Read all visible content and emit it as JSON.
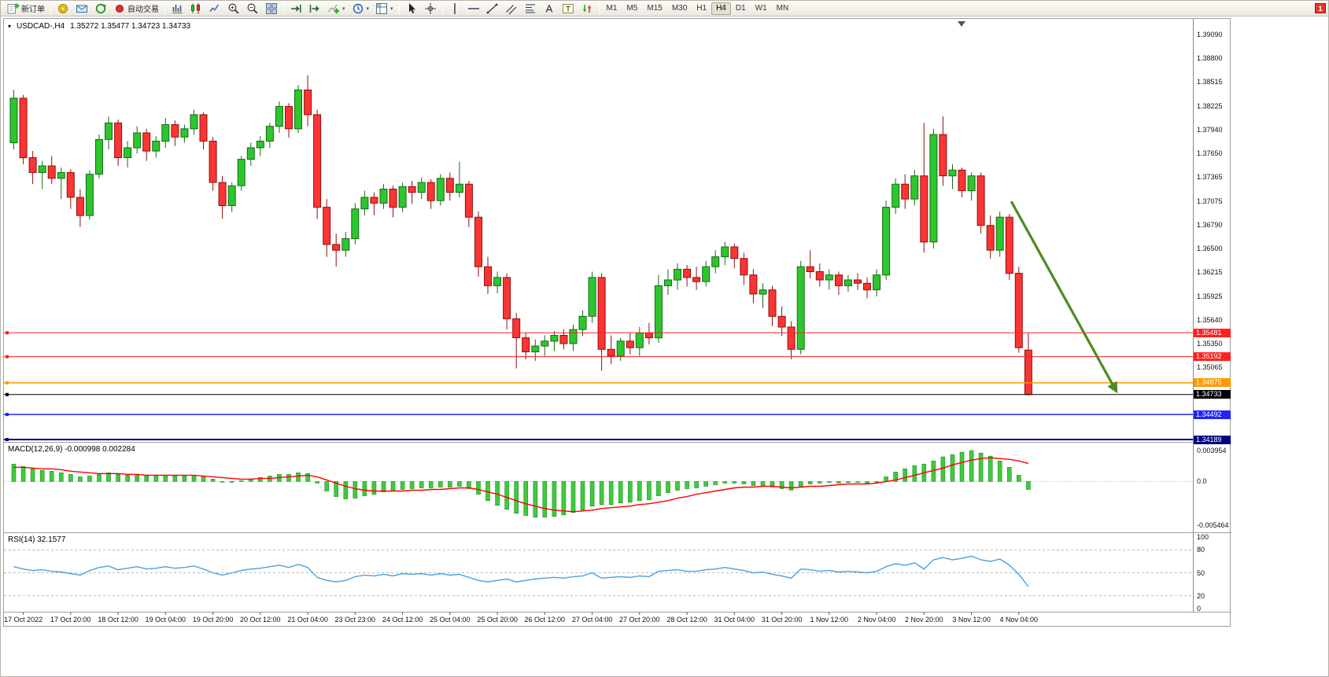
{
  "app": {
    "badge": "1"
  },
  "toolbar": {
    "items": [
      {
        "type": "button",
        "name": "new-order-button",
        "icon": "new-order",
        "label": "新订单"
      },
      {
        "type": "sep"
      },
      {
        "type": "icon",
        "name": "alerts-button",
        "icon": "alerts"
      },
      {
        "type": "icon",
        "name": "mailbox-button",
        "icon": "mailbox"
      },
      {
        "type": "icon",
        "name": "refresh-button",
        "icon": "history"
      },
      {
        "type": "button",
        "name": "autotrade-button",
        "icon": "autotrade",
        "label": "自动交易"
      },
      {
        "type": "sep"
      },
      {
        "type": "icon",
        "name": "bar-chart-mode-button",
        "icon": "bars"
      },
      {
        "type": "icon",
        "name": "candle-mode-button",
        "icon": "candles"
      },
      {
        "type": "icon",
        "name": "line-mode-button",
        "icon": "linechart"
      },
      {
        "type": "icon",
        "name": "zoom-in-button",
        "icon": "zoom-in"
      },
      {
        "type": "icon",
        "name": "zoom-out-button",
        "icon": "zoom-out"
      },
      {
        "type": "icon",
        "name": "tile-windows-button",
        "icon": "tile"
      },
      {
        "type": "sep"
      },
      {
        "type": "icon",
        "name": "auto-scroll-button",
        "icon": "autoscroll"
      },
      {
        "type": "icon",
        "name": "chart-shift-button",
        "icon": "chartshift"
      },
      {
        "type": "icon",
        "name": "indicators-button",
        "icon": "indicators",
        "dropdown": true
      },
      {
        "type": "icon",
        "name": "periods-button",
        "icon": "periods",
        "dropdown": true
      },
      {
        "type": "icon",
        "name": "templates-button",
        "icon": "templates",
        "dropdown": true
      },
      {
        "type": "sep"
      },
      {
        "type": "icon",
        "name": "cursor-button",
        "icon": "cursor"
      },
      {
        "type": "icon",
        "name": "crosshair-button",
        "icon": "crosshair"
      },
      {
        "type": "sep"
      },
      {
        "type": "icon",
        "name": "vline-button",
        "icon": "vline"
      },
      {
        "type": "icon",
        "name": "hline-button",
        "icon": "hline"
      },
      {
        "type": "icon",
        "name": "trendline-button",
        "icon": "trendline"
      },
      {
        "type": "icon",
        "name": "channel-button",
        "icon": "channel"
      },
      {
        "type": "icon",
        "name": "fibo-button",
        "icon": "fibo"
      },
      {
        "type": "icon",
        "name": "text-button",
        "icon": "text-a"
      },
      {
        "type": "icon",
        "name": "label-button",
        "icon": "text-t"
      },
      {
        "type": "icon",
        "name": "arrows-button",
        "icon": "arrows"
      },
      {
        "type": "sep"
      }
    ],
    "timeframes": [
      "M1",
      "M5",
      "M15",
      "M30",
      "H1",
      "H4",
      "D1",
      "W1",
      "MN"
    ],
    "active_timeframe": "H4"
  },
  "chart": {
    "symbol_title": "USDCAD-,H4",
    "ohlc_title": "1.35272 1.35477 1.34723 1.34733",
    "macd_label": "MACD(12,26,9) -0.000998 0.002284",
    "rsi_label": "RSI(14) 32.1577"
  },
  "colors": {
    "bull": "#2ec62e",
    "bull_stroke": "#156a15",
    "bear": "#fb3434",
    "bear_stroke": "#8f0f0f",
    "macd_hist": "#3ecb3e",
    "macd_hist_stroke": "#1e8f1e",
    "macd_signal": "#ff0000",
    "rsi": "#4aa0e0",
    "arrow": "#4c8c1e"
  },
  "axes": {
    "price_top": 1.39242,
    "price_bottom": 1.3416,
    "macd_max": 0.0047,
    "macd_min": -0.0062,
    "price_ticks": [
      "1.39090",
      "1.38800",
      "1.38515",
      "1.38225",
      "1.37940",
      "1.37650",
      "1.37365",
      "1.37075",
      "1.36790",
      "1.36500",
      "1.36215",
      "1.35925",
      "1.35640",
      "1.35350",
      "1.35065"
    ],
    "macd_ticks": [
      {
        "v": 0.003954,
        "t": "0.003954"
      },
      {
        "v": 0.0,
        "t": "0.0"
      },
      {
        "v": -0.005464,
        "t": "-0.005464"
      }
    ],
    "rsi_ticks": [
      {
        "v": 100,
        "t": "100"
      },
      {
        "v": 80,
        "t": "80"
      },
      {
        "v": 50,
        "t": "50"
      },
      {
        "v": 20,
        "t": "20"
      },
      {
        "v": 0,
        "t": "0"
      }
    ],
    "rsi_levels": [
      80,
      50,
      20
    ]
  },
  "hlines": [
    {
      "price": 1.35481,
      "label": "1.35481",
      "color": "#ff2020",
      "w": 1
    },
    {
      "price": 1.35192,
      "label": "1.35192",
      "color": "#ff2020",
      "w": 1
    },
    {
      "price": 1.34875,
      "label": "1.34875",
      "color": "#ff9a00",
      "w": 1.5
    },
    {
      "price": 1.34733,
      "label": "1.34733",
      "color": "#000000",
      "w": 1
    },
    {
      "price": 1.34492,
      "label": "1.34492",
      "color": "#2222ff",
      "w": 1.5
    },
    {
      "price": 1.34189,
      "label": "1.34189",
      "color": "#000080",
      "w": 2
    }
  ],
  "arrow": {
    "from_bar": 105.2,
    "from_price": 1.3707,
    "to_bar": 116.3,
    "to_price": 1.3477
  },
  "chart_data": {
    "type": "candlestick",
    "symbol": "USDCAD-",
    "timeframe": "H4",
    "candles": [
      [
        1.3778,
        1.3842,
        1.377,
        1.3832
      ],
      [
        1.3832,
        1.3836,
        1.3752,
        1.376
      ],
      [
        1.376,
        1.3768,
        1.3728,
        1.3742
      ],
      [
        1.3742,
        1.3756,
        1.3722,
        1.375
      ],
      [
        1.375,
        1.3762,
        1.3728,
        1.3735
      ],
      [
        1.3735,
        1.3748,
        1.371,
        1.3742
      ],
      [
        1.3742,
        1.3746,
        1.3698,
        1.3712
      ],
      [
        1.3712,
        1.3722,
        1.3676,
        1.369
      ],
      [
        1.369,
        1.3745,
        1.3685,
        1.374
      ],
      [
        1.374,
        1.3788,
        1.3735,
        1.3782
      ],
      [
        1.3782,
        1.381,
        1.377,
        1.3802
      ],
      [
        1.3802,
        1.3806,
        1.375,
        1.376
      ],
      [
        1.376,
        1.378,
        1.3748,
        1.3772
      ],
      [
        1.3772,
        1.3798,
        1.3765,
        1.379
      ],
      [
        1.379,
        1.3795,
        1.3756,
        1.3768
      ],
      [
        1.3768,
        1.3786,
        1.376,
        1.378
      ],
      [
        1.378,
        1.3808,
        1.3772,
        1.38
      ],
      [
        1.38,
        1.3805,
        1.3774,
        1.3785
      ],
      [
        1.3785,
        1.38,
        1.3778,
        1.3795
      ],
      [
        1.3795,
        1.3818,
        1.3788,
        1.3812
      ],
      [
        1.3812,
        1.3815,
        1.377,
        1.378
      ],
      [
        1.378,
        1.3785,
        1.372,
        1.373
      ],
      [
        1.373,
        1.3738,
        1.3686,
        1.3702
      ],
      [
        1.3702,
        1.373,
        1.3694,
        1.3726
      ],
      [
        1.3726,
        1.3762,
        1.372,
        1.3758
      ],
      [
        1.3758,
        1.3778,
        1.375,
        1.3772
      ],
      [
        1.3772,
        1.3786,
        1.3762,
        1.378
      ],
      [
        1.378,
        1.3802,
        1.3772,
        1.3798
      ],
      [
        1.3798,
        1.3828,
        1.379,
        1.3822
      ],
      [
        1.3822,
        1.3826,
        1.3784,
        1.3795
      ],
      [
        1.3795,
        1.3848,
        1.379,
        1.3842
      ],
      [
        1.3842,
        1.386,
        1.3798,
        1.3812
      ],
      [
        1.3812,
        1.3818,
        1.3686,
        1.37
      ],
      [
        1.37,
        1.371,
        1.364,
        1.3655
      ],
      [
        1.3655,
        1.3668,
        1.3628,
        1.3648
      ],
      [
        1.3648,
        1.367,
        1.364,
        1.3662
      ],
      [
        1.3662,
        1.3705,
        1.3655,
        1.3698
      ],
      [
        1.3698,
        1.372,
        1.369,
        1.3712
      ],
      [
        1.3712,
        1.3718,
        1.369,
        1.3705
      ],
      [
        1.3705,
        1.3728,
        1.3698,
        1.3722
      ],
      [
        1.3722,
        1.3726,
        1.3688,
        1.37
      ],
      [
        1.37,
        1.373,
        1.3694,
        1.3725
      ],
      [
        1.3725,
        1.3732,
        1.3704,
        1.3718
      ],
      [
        1.3718,
        1.3736,
        1.371,
        1.373
      ],
      [
        1.373,
        1.3734,
        1.3698,
        1.3708
      ],
      [
        1.3708,
        1.374,
        1.3702,
        1.3735
      ],
      [
        1.3735,
        1.3742,
        1.3708,
        1.3718
      ],
      [
        1.3718,
        1.3755,
        1.3712,
        1.3728
      ],
      [
        1.3728,
        1.3732,
        1.3676,
        1.3688
      ],
      [
        1.3688,
        1.3695,
        1.3616,
        1.3628
      ],
      [
        1.3628,
        1.364,
        1.3595,
        1.3605
      ],
      [
        1.3605,
        1.3622,
        1.3596,
        1.3615
      ],
      [
        1.3615,
        1.362,
        1.3552,
        1.3565
      ],
      [
        1.3565,
        1.3572,
        1.3505,
        1.3542
      ],
      [
        1.3542,
        1.3548,
        1.3516,
        1.3525
      ],
      [
        1.3525,
        1.354,
        1.3514,
        1.3532
      ],
      [
        1.3532,
        1.3545,
        1.352,
        1.3538
      ],
      [
        1.3538,
        1.355,
        1.3526,
        1.3545
      ],
      [
        1.3545,
        1.3552,
        1.3528,
        1.3535
      ],
      [
        1.3535,
        1.3558,
        1.3526,
        1.3552
      ],
      [
        1.3552,
        1.3575,
        1.3544,
        1.3568
      ],
      [
        1.3568,
        1.3622,
        1.356,
        1.3615
      ],
      [
        1.3615,
        1.362,
        1.3502,
        1.3528
      ],
      [
        1.3528,
        1.3545,
        1.351,
        1.352
      ],
      [
        1.352,
        1.3542,
        1.3514,
        1.3538
      ],
      [
        1.3538,
        1.3548,
        1.3522,
        1.353
      ],
      [
        1.353,
        1.3555,
        1.352,
        1.3548
      ],
      [
        1.3548,
        1.356,
        1.3534,
        1.3542
      ],
      [
        1.3542,
        1.3618,
        1.3536,
        1.3605
      ],
      [
        1.3605,
        1.3625,
        1.3594,
        1.3612
      ],
      [
        1.3612,
        1.3632,
        1.36,
        1.3625
      ],
      [
        1.3625,
        1.363,
        1.3604,
        1.3615
      ],
      [
        1.3615,
        1.3628,
        1.36,
        1.361
      ],
      [
        1.361,
        1.3635,
        1.3604,
        1.3628
      ],
      [
        1.3628,
        1.3648,
        1.362,
        1.364
      ],
      [
        1.364,
        1.3658,
        1.363,
        1.3652
      ],
      [
        1.3652,
        1.3656,
        1.3626,
        1.3638
      ],
      [
        1.3638,
        1.3645,
        1.3606,
        1.3618
      ],
      [
        1.3618,
        1.3625,
        1.3584,
        1.3595
      ],
      [
        1.3595,
        1.3608,
        1.3578,
        1.36
      ],
      [
        1.36,
        1.3605,
        1.3556,
        1.3568
      ],
      [
        1.3568,
        1.358,
        1.3544,
        1.3555
      ],
      [
        1.3555,
        1.3562,
        1.3516,
        1.3528
      ],
      [
        1.3528,
        1.3635,
        1.3522,
        1.3628
      ],
      [
        1.3628,
        1.3648,
        1.3614,
        1.3622
      ],
      [
        1.3622,
        1.3632,
        1.3604,
        1.3612
      ],
      [
        1.3612,
        1.3625,
        1.36,
        1.3618
      ],
      [
        1.3618,
        1.3622,
        1.3594,
        1.3605
      ],
      [
        1.3605,
        1.3618,
        1.3598,
        1.3612
      ],
      [
        1.3612,
        1.362,
        1.36,
        1.3608
      ],
      [
        1.3608,
        1.3615,
        1.359,
        1.36
      ],
      [
        1.36,
        1.3625,
        1.3592,
        1.3618
      ],
      [
        1.3618,
        1.3708,
        1.3612,
        1.37
      ],
      [
        1.37,
        1.3735,
        1.3692,
        1.3728
      ],
      [
        1.3728,
        1.374,
        1.3698,
        1.371
      ],
      [
        1.371,
        1.3745,
        1.3702,
        1.3738
      ],
      [
        1.3738,
        1.3802,
        1.3645,
        1.3658
      ],
      [
        1.3658,
        1.3795,
        1.365,
        1.3788
      ],
      [
        1.3788,
        1.381,
        1.3726,
        1.3738
      ],
      [
        1.3738,
        1.3752,
        1.3722,
        1.3745
      ],
      [
        1.3745,
        1.3748,
        1.3712,
        1.372
      ],
      [
        1.372,
        1.3742,
        1.3708,
        1.3738
      ],
      [
        1.3738,
        1.3742,
        1.3668,
        1.3678
      ],
      [
        1.3678,
        1.369,
        1.3638,
        1.3648
      ],
      [
        1.3648,
        1.3695,
        1.364,
        1.3688
      ],
      [
        1.3688,
        1.3692,
        1.3612,
        1.362
      ],
      [
        1.362,
        1.3628,
        1.3524,
        1.353
      ],
      [
        1.35272,
        1.35477,
        1.34723,
        1.34733
      ]
    ],
    "macd": {
      "histogram": [
        0.0022,
        0.0019,
        0.0016,
        0.0014,
        0.0013,
        0.0011,
        0.0009,
        0.0006,
        0.0007,
        0.0009,
        0.0011,
        0.0009,
        0.0008,
        0.0008,
        0.0007,
        0.0007,
        0.0008,
        0.0007,
        0.0007,
        0.0008,
        0.0006,
        0.0003,
        0.0,
        -0.0001,
        0.0001,
        0.0003,
        0.0005,
        0.0007,
        0.0009,
        0.0009,
        0.0011,
        0.001,
        -0.0002,
        -0.0012,
        -0.0019,
        -0.0022,
        -0.0021,
        -0.0018,
        -0.0016,
        -0.0013,
        -0.0012,
        -0.001,
        -0.0009,
        -0.0008,
        -0.0008,
        -0.0007,
        -0.0007,
        -0.0006,
        -0.0009,
        -0.0016,
        -0.0024,
        -0.003,
        -0.0035,
        -0.004,
        -0.0043,
        -0.0045,
        -0.0045,
        -0.0044,
        -0.0042,
        -0.0039,
        -0.0036,
        -0.0031,
        -0.0029,
        -0.0029,
        -0.0027,
        -0.0026,
        -0.0024,
        -0.0023,
        -0.0018,
        -0.0014,
        -0.0011,
        -0.0009,
        -0.0008,
        -0.0006,
        -0.0004,
        -0.0002,
        -0.0002,
        -0.0003,
        -0.0005,
        -0.0005,
        -0.0007,
        -0.0009,
        -0.0011,
        -0.0006,
        -0.0003,
        -0.0002,
        -0.0001,
        -0.0002,
        -0.0001,
        -0.0001,
        -0.0002,
        0.0,
        0.0006,
        0.0012,
        0.0016,
        0.002,
        0.0022,
        0.0026,
        0.0031,
        0.0034,
        0.0037,
        0.0039,
        0.0036,
        0.0032,
        0.0026,
        0.0018,
        0.0008,
        -0.000998
      ],
      "signal": [
        0.0018,
        0.0018,
        0.0017,
        0.0016,
        0.0016,
        0.0015,
        0.0013,
        0.0012,
        0.0011,
        0.001,
        0.001,
        0.001,
        0.0009,
        0.0009,
        0.0008,
        0.0008,
        0.0008,
        0.0008,
        0.0008,
        0.0008,
        0.0007,
        0.0006,
        0.0005,
        0.0004,
        0.0003,
        0.0003,
        0.0004,
        0.0004,
        0.0005,
        0.0006,
        0.0007,
        0.0008,
        0.0006,
        0.0002,
        -0.0002,
        -0.0006,
        -0.0009,
        -0.0011,
        -0.0012,
        -0.0012,
        -0.0012,
        -0.0012,
        -0.0011,
        -0.0011,
        -0.001,
        -0.001,
        -0.0009,
        -0.0008,
        -0.0008,
        -0.001,
        -0.0013,
        -0.0016,
        -0.002,
        -0.0024,
        -0.0028,
        -0.0031,
        -0.0034,
        -0.0036,
        -0.0037,
        -0.0038,
        -0.0037,
        -0.0036,
        -0.0034,
        -0.0033,
        -0.0032,
        -0.0031,
        -0.0029,
        -0.0028,
        -0.0026,
        -0.0024,
        -0.0021,
        -0.0019,
        -0.0016,
        -0.0014,
        -0.0012,
        -0.001,
        -0.0008,
        -0.0007,
        -0.0007,
        -0.0006,
        -0.0006,
        -0.0007,
        -0.0008,
        -0.0007,
        -0.0006,
        -0.0006,
        -0.0005,
        -0.0004,
        -0.0003,
        -0.0003,
        -0.0003,
        -0.0002,
        0.0,
        0.0002,
        0.0005,
        0.0008,
        0.0011,
        0.0014,
        0.0017,
        0.0021,
        0.0024,
        0.0027,
        0.0029,
        0.003,
        0.0029,
        0.0028,
        0.0026,
        0.002284
      ]
    },
    "rsi": {
      "values": [
        58,
        55,
        53,
        54,
        52,
        51,
        49,
        47,
        53,
        57,
        59,
        54,
        56,
        58,
        55,
        56,
        58,
        56,
        57,
        59,
        55,
        50,
        47,
        50,
        53,
        55,
        56,
        58,
        60,
        57,
        61,
        57,
        44,
        40,
        38,
        40,
        45,
        47,
        46,
        48,
        46,
        49,
        48,
        49,
        47,
        49,
        47,
        48,
        44,
        40,
        38,
        40,
        42,
        38,
        40,
        42,
        43,
        44,
        43,
        45,
        46,
        50,
        43,
        44,
        45,
        44,
        46,
        45,
        52,
        53,
        54,
        52,
        52,
        54,
        55,
        57,
        55,
        53,
        50,
        51,
        48,
        46,
        43,
        55,
        54,
        52,
        53,
        51,
        52,
        51,
        50,
        52,
        58,
        62,
        60,
        63,
        55,
        67,
        70,
        67,
        69,
        72,
        67,
        65,
        68,
        60,
        48,
        32
      ]
    },
    "time_labels": [
      "17 Oct 2022",
      "17 Oct 20:00",
      "18 Oct 12:00",
      "19 Oct 04:00",
      "19 Oct 20:00",
      "20 Oct 12:00",
      "21 Oct 04:00",
      "23 Oct 23:00",
      "24 Oct 12:00",
      "25 Oct 04:00",
      "25 Oct 20:00",
      "26 Oct 12:00",
      "27 Oct 04:00",
      "27 Oct 20:00",
      "28 Oct 12:00",
      "31 Oct 04:00",
      "31 Oct 20:00",
      "1 Nov 12:00",
      "2 Nov 04:00",
      "2 Nov 20:00",
      "3 Nov 12:00",
      "4 Nov 04:00"
    ]
  }
}
